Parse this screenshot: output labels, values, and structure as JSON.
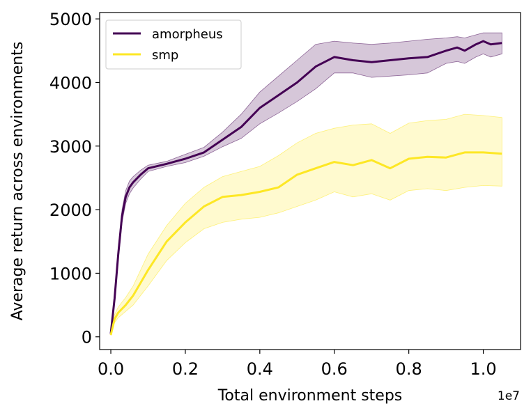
{
  "chart_data": {
    "type": "line",
    "title": "",
    "xlabel": "Total environment steps",
    "ylabel": "Average return across environments",
    "x_offset_label": "1e7",
    "xlim": [
      -0.03,
      1.1
    ],
    "ylim": [
      -200,
      5100
    ],
    "xticks": [
      0.0,
      0.2,
      0.4,
      0.6,
      0.8,
      1.0
    ],
    "xtick_labels": [
      "0.0",
      "0.2",
      "0.4",
      "0.6",
      "0.8",
      "1.0"
    ],
    "yticks": [
      0,
      1000,
      2000,
      3000,
      4000,
      5000
    ],
    "ytick_labels": [
      "0",
      "1000",
      "2000",
      "3000",
      "4000",
      "5000"
    ],
    "grid": false,
    "legend": {
      "position": "top-left",
      "entries": [
        "amorpheus",
        "smp"
      ]
    },
    "series": [
      {
        "name": "amorpheus",
        "color": "#440154",
        "x": [
          0.0,
          0.01,
          0.02,
          0.03,
          0.04,
          0.05,
          0.06,
          0.08,
          0.1,
          0.15,
          0.2,
          0.25,
          0.3,
          0.35,
          0.4,
          0.45,
          0.5,
          0.55,
          0.6,
          0.65,
          0.7,
          0.75,
          0.8,
          0.85,
          0.9,
          0.93,
          0.95,
          0.98,
          1.0,
          1.02,
          1.05
        ],
        "y": [
          50,
          600,
          1300,
          1900,
          2200,
          2350,
          2430,
          2550,
          2650,
          2720,
          2800,
          2900,
          3100,
          3300,
          3600,
          3800,
          4000,
          4250,
          4400,
          4350,
          4320,
          4350,
          4380,
          4400,
          4500,
          4550,
          4500,
          4600,
          4650,
          4600,
          4620
        ],
        "upper": [
          60,
          650,
          1400,
          2000,
          2300,
          2450,
          2520,
          2620,
          2700,
          2760,
          2870,
          2980,
          3220,
          3500,
          3850,
          4100,
          4350,
          4600,
          4650,
          4620,
          4600,
          4620,
          4650,
          4680,
          4700,
          4720,
          4700,
          4750,
          4780,
          4780,
          4780
        ],
        "lower": [
          40,
          550,
          1200,
          1800,
          2100,
          2250,
          2340,
          2480,
          2600,
          2680,
          2740,
          2840,
          2990,
          3120,
          3350,
          3520,
          3700,
          3900,
          4150,
          4150,
          4080,
          4100,
          4120,
          4150,
          4300,
          4330,
          4300,
          4400,
          4450,
          4400,
          4450
        ]
      },
      {
        "name": "smp",
        "color": "#fde725",
        "x": [
          0.0,
          0.01,
          0.02,
          0.04,
          0.06,
          0.08,
          0.1,
          0.15,
          0.2,
          0.25,
          0.3,
          0.35,
          0.4,
          0.45,
          0.5,
          0.55,
          0.6,
          0.65,
          0.7,
          0.75,
          0.8,
          0.85,
          0.9,
          0.95,
          1.0,
          1.05
        ],
        "y": [
          30,
          280,
          380,
          500,
          650,
          850,
          1050,
          1500,
          1800,
          2050,
          2200,
          2230,
          2280,
          2350,
          2550,
          2650,
          2750,
          2700,
          2780,
          2650,
          2800,
          2830,
          2820,
          2900,
          2900,
          2880
        ],
        "upper": [
          40,
          350,
          470,
          620,
          800,
          1050,
          1300,
          1750,
          2100,
          2350,
          2520,
          2600,
          2680,
          2850,
          3050,
          3200,
          3280,
          3330,
          3350,
          3200,
          3360,
          3400,
          3420,
          3500,
          3480,
          3450
        ],
        "lower": [
          20,
          220,
          300,
          400,
          500,
          650,
          800,
          1200,
          1480,
          1700,
          1800,
          1850,
          1880,
          1950,
          2050,
          2150,
          2280,
          2200,
          2250,
          2150,
          2300,
          2330,
          2300,
          2350,
          2380,
          2370
        ]
      }
    ]
  }
}
